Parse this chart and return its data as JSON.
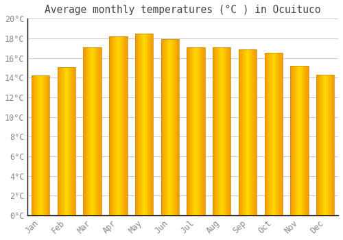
{
  "title": "Average monthly temperatures (°C ) in Ocuituco",
  "months": [
    "Jan",
    "Feb",
    "Mar",
    "Apr",
    "May",
    "Jun",
    "Jul",
    "Aug",
    "Sep",
    "Oct",
    "Nov",
    "Dec"
  ],
  "values": [
    14.2,
    15.1,
    17.1,
    18.2,
    18.5,
    17.9,
    17.1,
    17.1,
    16.9,
    16.5,
    15.2,
    14.3
  ],
  "bar_color": "#FFAA00",
  "bar_edge_color": "#CC8800",
  "background_color": "#FFFFFF",
  "grid_color": "#CCCCCC",
  "ylim": [
    0,
    20
  ],
  "ytick_step": 2,
  "title_fontsize": 10.5,
  "tick_fontsize": 8.5,
  "tick_color": "#888888",
  "title_color": "#444444",
  "axis_color": "#000000"
}
